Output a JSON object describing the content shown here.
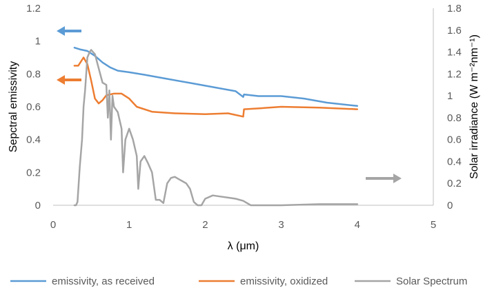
{
  "chart_data": {
    "type": "line",
    "xlabel": "λ (μm)",
    "ylabel_left": "Sepctral emissivity",
    "ylabel_right": "Solar irradiance (W m⁻²nm⁻¹)",
    "xlim": [
      0,
      5
    ],
    "ylim_left": [
      0,
      1.2
    ],
    "ylim_right": [
      0,
      1.8
    ],
    "x_ticks": [
      "0",
      "1",
      "2",
      "3",
      "4",
      "5"
    ],
    "y_ticks_left": [
      "0",
      "0.2",
      "0.4",
      "0.6",
      "0.8",
      "1",
      "1.2"
    ],
    "y_ticks_right": [
      "0",
      "0.2",
      "0.4",
      "0.6",
      "0.8",
      "1",
      "1.2",
      "1.4",
      "1.6",
      "1.8"
    ],
    "grid": false,
    "legend_position": "bottom",
    "series": [
      {
        "name": "emissivity, as received",
        "axis": "left",
        "color": "#5b9bd5",
        "x": [
          0.28,
          0.35,
          0.45,
          0.55,
          0.65,
          0.75,
          0.85,
          1.0,
          1.2,
          1.5,
          1.8,
          2.1,
          2.4,
          2.5,
          2.51,
          2.7,
          3.0,
          3.3,
          3.6,
          4.0
        ],
        "y": [
          0.96,
          0.95,
          0.94,
          0.91,
          0.87,
          0.84,
          0.82,
          0.81,
          0.795,
          0.77,
          0.745,
          0.72,
          0.695,
          0.66,
          0.675,
          0.665,
          0.665,
          0.65,
          0.625,
          0.605
        ]
      },
      {
        "name": "emissivity, oxidized",
        "axis": "left",
        "color": "#ed7d31",
        "x": [
          0.28,
          0.33,
          0.4,
          0.45,
          0.5,
          0.55,
          0.6,
          0.65,
          0.7,
          0.8,
          0.9,
          1.0,
          1.1,
          1.3,
          1.6,
          2.0,
          2.3,
          2.5,
          2.51,
          2.7,
          3.0,
          3.5,
          4.0
        ],
        "y": [
          0.85,
          0.85,
          0.9,
          0.86,
          0.76,
          0.65,
          0.62,
          0.64,
          0.67,
          0.68,
          0.68,
          0.65,
          0.6,
          0.57,
          0.56,
          0.555,
          0.56,
          0.54,
          0.585,
          0.59,
          0.6,
          0.595,
          0.585
        ]
      },
      {
        "name": "Solar Spectrum",
        "axis": "right",
        "color": "#a5a5a5",
        "x": [
          0.28,
          0.3,
          0.32,
          0.35,
          0.38,
          0.4,
          0.42,
          0.45,
          0.48,
          0.5,
          0.55,
          0.6,
          0.65,
          0.7,
          0.72,
          0.74,
          0.76,
          0.78,
          0.8,
          0.85,
          0.9,
          0.92,
          0.95,
          1.0,
          1.05,
          1.1,
          1.12,
          1.15,
          1.2,
          1.25,
          1.3,
          1.35,
          1.4,
          1.45,
          1.5,
          1.55,
          1.6,
          1.65,
          1.7,
          1.75,
          1.8,
          1.85,
          1.9,
          1.95,
          2.0,
          2.1,
          2.2,
          2.3,
          2.4,
          2.5,
          2.6,
          3.0,
          3.5,
          4.0
        ],
        "y": [
          0.0,
          0.0,
          0.03,
          0.35,
          0.6,
          0.9,
          1.05,
          1.35,
          1.4,
          1.42,
          1.38,
          1.25,
          1.12,
          1.1,
          0.8,
          1.05,
          0.6,
          1.0,
          0.9,
          0.85,
          0.7,
          0.3,
          0.6,
          0.7,
          0.6,
          0.45,
          0.15,
          0.4,
          0.45,
          0.38,
          0.3,
          0.05,
          0.05,
          0.02,
          0.2,
          0.25,
          0.26,
          0.24,
          0.22,
          0.2,
          0.15,
          0.03,
          0.0,
          0.0,
          0.06,
          0.09,
          0.08,
          0.07,
          0.06,
          0.04,
          0.0,
          0.0,
          0.01,
          0.01
        ]
      }
    ],
    "annotations": [
      {
        "type": "arrow",
        "direction": "left",
        "color": "#5b9bd5",
        "meaning": "left axis"
      },
      {
        "type": "arrow",
        "direction": "left",
        "color": "#ed7d31",
        "meaning": "left axis"
      },
      {
        "type": "arrow",
        "direction": "right",
        "color": "#a5a5a5",
        "meaning": "right axis"
      }
    ]
  }
}
